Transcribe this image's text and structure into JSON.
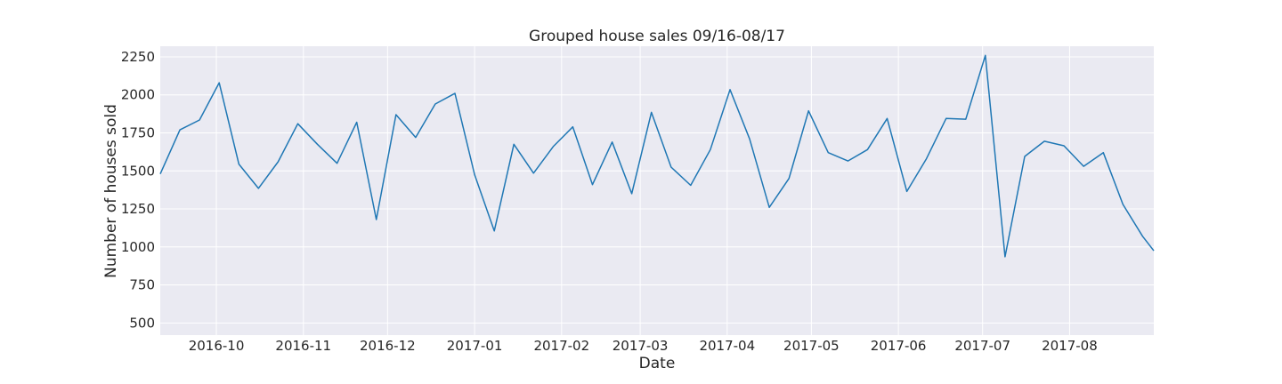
{
  "chart_data": {
    "type": "line",
    "title": "Grouped house sales 09/16-08/17",
    "xlabel": "Date",
    "ylabel": "Number of houses sold",
    "ylim": [
      420,
      2320
    ],
    "xlim": [
      "2016-09-11",
      "2017-08-31"
    ],
    "grid": true,
    "legend": "none",
    "colors": {
      "background": "#eaeaf2",
      "grid": "#ffffff",
      "line": "#1f77b4",
      "text": "#262626"
    },
    "y_ticks": [
      500,
      750,
      1000,
      1250,
      1500,
      1750,
      2000,
      2250
    ],
    "y_tick_labels": [
      "500",
      "750",
      "1000",
      "1250",
      "1500",
      "1750",
      "2000",
      "2250"
    ],
    "x_ticks": [
      "2016-10-01",
      "2016-11-01",
      "2016-12-01",
      "2017-01-01",
      "2017-02-01",
      "2017-03-01",
      "2017-04-01",
      "2017-05-01",
      "2017-06-01",
      "2017-07-01",
      "2017-08-01"
    ],
    "x_tick_labels": [
      "2016-10",
      "2016-11",
      "2016-12",
      "2017-01",
      "2017-02",
      "2017-03",
      "2017-04",
      "2017-05",
      "2017-06",
      "2017-07",
      "2017-08"
    ],
    "series": [
      {
        "x": [
          "2016-09-11",
          "2016-09-18",
          "2016-09-25",
          "2016-10-02",
          "2016-10-09",
          "2016-10-16",
          "2016-10-23",
          "2016-10-30",
          "2016-11-06",
          "2016-11-13",
          "2016-11-20",
          "2016-11-27",
          "2016-12-04",
          "2016-12-11",
          "2016-12-18",
          "2016-12-25",
          "2017-01-01",
          "2017-01-08",
          "2017-01-15",
          "2017-01-22",
          "2017-01-29",
          "2017-02-05",
          "2017-02-12",
          "2017-02-19",
          "2017-02-26",
          "2017-03-05",
          "2017-03-12",
          "2017-03-19",
          "2017-03-26",
          "2017-04-02",
          "2017-04-09",
          "2017-04-16",
          "2017-04-23",
          "2017-04-30",
          "2017-05-07",
          "2017-05-14",
          "2017-05-21",
          "2017-05-28",
          "2017-06-04",
          "2017-06-11",
          "2017-06-18",
          "2017-06-25",
          "2017-07-02",
          "2017-07-09",
          "2017-07-16",
          "2017-07-23",
          "2017-07-30",
          "2017-08-06",
          "2017-08-13",
          "2017-08-20",
          "2017-08-27",
          "2017-08-31"
        ],
        "values": [
          1480,
          1770,
          1835,
          2080,
          1545,
          1385,
          1560,
          1810,
          1675,
          1550,
          1820,
          1180,
          1870,
          1720,
          1940,
          2010,
          1475,
          1105,
          1675,
          1485,
          1660,
          1790,
          1410,
          1690,
          1350,
          1885,
          1525,
          1405,
          1640,
          2035,
          1710,
          1260,
          1450,
          1895,
          1620,
          1565,
          1640,
          1845,
          1365,
          1580,
          1845,
          1840,
          2260,
          935,
          1595,
          1695,
          1665,
          1530,
          1620,
          1280,
          1070,
          975
        ]
      }
    ]
  }
}
